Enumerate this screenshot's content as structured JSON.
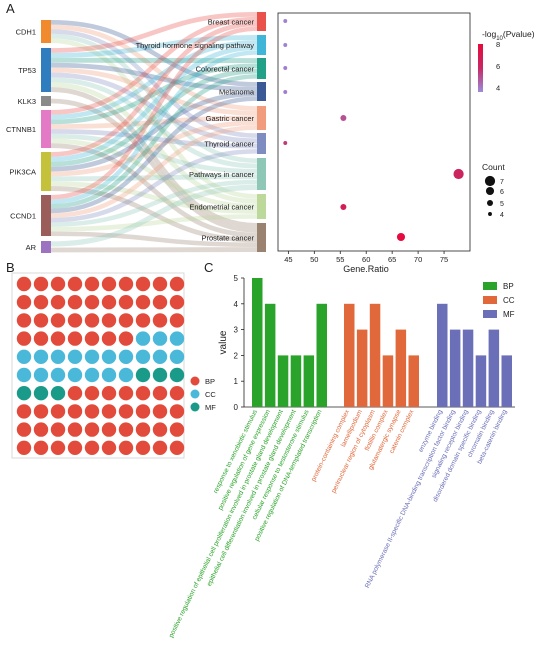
{
  "panels": {
    "a": "A",
    "b": "B",
    "c": "C"
  },
  "colors": {
    "genes": [
      "#f08a2c",
      "#2f7dbf",
      "#8a8a8a",
      "#e47ac6",
      "#c4c23a",
      "#9b5d59",
      "#9b73c1"
    ],
    "pathways": [
      "#e8524b",
      "#3fb6d8",
      "#22a088",
      "#3b5a95",
      "#f09c7d",
      "#7f8cc0",
      "#8ec7b6",
      "#bcd89a",
      "#9a8271"
    ],
    "BP": "#29a329",
    "CC": "#e0683a",
    "MF": "#6b6fb8",
    "waffle_BP": "#e24b3b",
    "waffle_CC": "#4ab8d8",
    "waffle_MF": "#1a9a88"
  },
  "chart_data": [
    {
      "type": "sankey",
      "genes": [
        "CDH1",
        "TP53",
        "KLK3",
        "CTNNB1",
        "PIK3CA",
        "CCND1",
        "AR"
      ],
      "pathways": [
        "Breast cancer",
        "Thyroid hormone signaling pathway",
        "Colorectal cancer",
        "Melanoma",
        "Gastric cancer",
        "Thyroid cancer",
        "Pathways in cancer",
        "Endometrial cancer",
        "Prostate cancer"
      ],
      "links": [
        [
          "CDH1",
          "Melanoma"
        ],
        [
          "CDH1",
          "Gastric cancer"
        ],
        [
          "CDH1",
          "Thyroid cancer"
        ],
        [
          "CDH1",
          "Pathways in cancer"
        ],
        [
          "CDH1",
          "Endometrial cancer"
        ],
        [
          "TP53",
          "Breast cancer"
        ],
        [
          "TP53",
          "Thyroid hormone signaling pathway"
        ],
        [
          "TP53",
          "Colorectal cancer"
        ],
        [
          "TP53",
          "Melanoma"
        ],
        [
          "TP53",
          "Gastric cancer"
        ],
        [
          "TP53",
          "Thyroid cancer"
        ],
        [
          "TP53",
          "Pathways in cancer"
        ],
        [
          "TP53",
          "Endometrial cancer"
        ],
        [
          "TP53",
          "Prostate cancer"
        ],
        [
          "KLK3",
          "Prostate cancer"
        ],
        [
          "CTNNB1",
          "Breast cancer"
        ],
        [
          "CTNNB1",
          "Thyroid hormone signaling pathway"
        ],
        [
          "CTNNB1",
          "Colorectal cancer"
        ],
        [
          "CTNNB1",
          "Gastric cancer"
        ],
        [
          "CTNNB1",
          "Thyroid cancer"
        ],
        [
          "CTNNB1",
          "Pathways in cancer"
        ],
        [
          "CTNNB1",
          "Endometrial cancer"
        ],
        [
          "CTNNB1",
          "Prostate cancer"
        ],
        [
          "PIK3CA",
          "Breast cancer"
        ],
        [
          "PIK3CA",
          "Thyroid hormone signaling pathway"
        ],
        [
          "PIK3CA",
          "Colorectal cancer"
        ],
        [
          "PIK3CA",
          "Melanoma"
        ],
        [
          "PIK3CA",
          "Gastric cancer"
        ],
        [
          "PIK3CA",
          "Pathways in cancer"
        ],
        [
          "PIK3CA",
          "Endometrial cancer"
        ],
        [
          "PIK3CA",
          "Prostate cancer"
        ],
        [
          "CCND1",
          "Breast cancer"
        ],
        [
          "CCND1",
          "Thyroid hormone signaling pathway"
        ],
        [
          "CCND1",
          "Colorectal cancer"
        ],
        [
          "CCND1",
          "Melanoma"
        ],
        [
          "CCND1",
          "Gastric cancer"
        ],
        [
          "CCND1",
          "Thyroid cancer"
        ],
        [
          "CCND1",
          "Pathways in cancer"
        ],
        [
          "CCND1",
          "Endometrial cancer"
        ],
        [
          "CCND1",
          "Prostate cancer"
        ],
        [
          "AR",
          "Pathways in cancer"
        ],
        [
          "AR",
          "Prostate cancer"
        ]
      ]
    },
    {
      "type": "scatter",
      "xlabel": "Gene.Ratio",
      "xlim": [
        43,
        80
      ],
      "xticks": [
        "45",
        "50",
        "55",
        "60",
        "65",
        "70",
        "75"
      ],
      "points": [
        {
          "pathway": "Breast cancer",
          "x": 44.4,
          "count": 4,
          "pvalue": 3.8
        },
        {
          "pathway": "Thyroid hormone signaling pathway",
          "x": 44.4,
          "count": 4,
          "pvalue": 3.8
        },
        {
          "pathway": "Colorectal cancer",
          "x": 44.4,
          "count": 4,
          "pvalue": 3.9
        },
        {
          "pathway": "Melanoma",
          "x": 44.4,
          "count": 4,
          "pvalue": 3.9
        },
        {
          "pathway": "Gastric cancer",
          "x": 55.6,
          "count": 5,
          "pvalue": 4.9
        },
        {
          "pathway": "Thyroid cancer",
          "x": 44.4,
          "count": 4,
          "pvalue": 5.4
        },
        {
          "pathway": "Pathways in cancer",
          "x": 77.8,
          "count": 7,
          "pvalue": 6.0
        },
        {
          "pathway": "Endometrial cancer",
          "x": 55.6,
          "count": 5,
          "pvalue": 6.6
        },
        {
          "pathway": "Prostate cancer",
          "x": 66.7,
          "count": 6,
          "pvalue": 7.9
        }
      ],
      "color_legend": {
        "title_main": "-log",
        "title_sub": "10",
        "title_tail": "(Pvalue)",
        "ticks": [
          "8",
          "6",
          "4"
        ],
        "range": [
          3.6,
          8
        ]
      },
      "size_legend": {
        "title": "Count",
        "ticks": [
          "7",
          "6",
          "5",
          "4"
        ]
      }
    },
    {
      "type": "waffle",
      "rows": [
        [
          "BP",
          "BP",
          "BP",
          "BP",
          "BP",
          "BP",
          "BP",
          "BP",
          "BP",
          "BP"
        ],
        [
          "BP",
          "BP",
          "BP",
          "BP",
          "BP",
          "BP",
          "BP",
          "BP",
          "BP",
          "BP"
        ],
        [
          "BP",
          "BP",
          "BP",
          "BP",
          "BP",
          "BP",
          "BP",
          "BP",
          "BP",
          "BP"
        ],
        [
          "BP",
          "BP",
          "BP",
          "BP",
          "BP",
          "BP",
          "BP",
          "CC",
          "CC",
          "CC"
        ],
        [
          "CC",
          "CC",
          "CC",
          "CC",
          "CC",
          "CC",
          "CC",
          "CC",
          "CC",
          "CC"
        ],
        [
          "CC",
          "CC",
          "CC",
          "CC",
          "CC",
          "CC",
          "CC",
          "MF",
          "MF",
          "MF"
        ],
        [
          "MF",
          "MF",
          "MF",
          "BP",
          "BP",
          "BP",
          "BP",
          "BP",
          "BP",
          "BP"
        ],
        [
          "BP",
          "BP",
          "BP",
          "BP",
          "BP",
          "BP",
          "BP",
          "BP",
          "BP",
          "BP"
        ],
        [
          "BP",
          "BP",
          "BP",
          "BP",
          "BP",
          "BP",
          "BP",
          "BP",
          "BP",
          "BP"
        ],
        [
          "BP",
          "BP",
          "BP",
          "BP",
          "BP",
          "BP",
          "BP",
          "BP",
          "BP",
          "BP"
        ]
      ],
      "legend": [
        "BP",
        "CC",
        "MF"
      ]
    },
    {
      "type": "bar",
      "ylabel": "value",
      "ylim": [
        0,
        5
      ],
      "yticks": [
        "0",
        "1",
        "2",
        "3",
        "4",
        "5"
      ],
      "legend": [
        "BP",
        "CC",
        "MF"
      ],
      "groups": [
        {
          "name": "BP",
          "bars": [
            {
              "label": "response to xenobiotic stimulus",
              "value": 5
            },
            {
              "label": "positive regulation of gene expression",
              "value": 4
            },
            {
              "label": "positive regulation of epithelial cell proliferation involved in prostate gland development",
              "value": 2
            },
            {
              "label": "epithelial cell differentiation involved in prostate gland development",
              "value": 2
            },
            {
              "label": "cellular response to testosterone stimulus",
              "value": 2
            },
            {
              "label": "positive regulation of DNA-templated transcription",
              "value": 4
            }
          ]
        },
        {
          "name": "CC",
          "bars": [
            {
              "label": "protein-containing complex",
              "value": 4
            },
            {
              "label": "lamellipodium",
              "value": 3
            },
            {
              "label": "perinuclear region of cytoplasm",
              "value": 4
            },
            {
              "label": "flotillin complex",
              "value": 2
            },
            {
              "label": "glutamatergic synapse",
              "value": 3
            },
            {
              "label": "catenin complex",
              "value": 2
            }
          ]
        },
        {
          "name": "MF",
          "bars": [
            {
              "label": "enzyme binding",
              "value": 4
            },
            {
              "label": "RNA polymerase II-specific DNA-binding transcription factor binding",
              "value": 3
            },
            {
              "label": "signaling receptor binding",
              "value": 3
            },
            {
              "label": "disordered domain specific binding",
              "value": 2
            },
            {
              "label": "chromatin binding",
              "value": 3
            },
            {
              "label": "beta-catenin binding",
              "value": 2
            }
          ]
        }
      ]
    }
  ]
}
